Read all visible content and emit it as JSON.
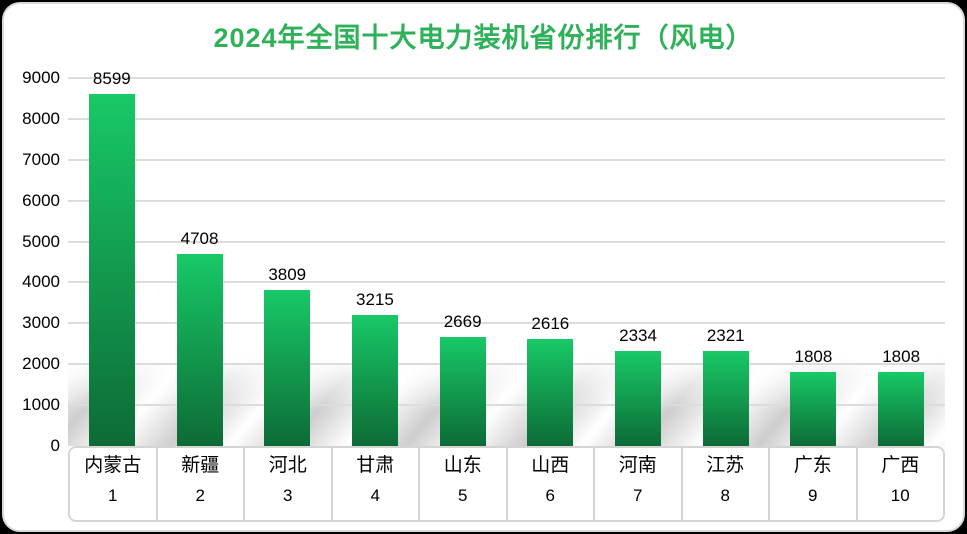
{
  "window": {
    "background": "#000000"
  },
  "card": {
    "background": "#ffffff",
    "border_color": "#d9d9d9"
  },
  "chart_data": {
    "type": "bar",
    "title": "2024年全国十大电力装机省份排行（风电）",
    "title_color": "#2eb158",
    "categories": [
      "内蒙古",
      "新疆",
      "河北",
      "甘肃",
      "山东",
      "山西",
      "河南",
      "江苏",
      "广东",
      "广西"
    ],
    "ranks": [
      "1",
      "2",
      "3",
      "4",
      "5",
      "6",
      "7",
      "8",
      "9",
      "10"
    ],
    "values": [
      8599,
      4708,
      3809,
      3215,
      2669,
      2616,
      2334,
      2321,
      1808,
      1808
    ],
    "xlabel": "",
    "ylabel": "",
    "ylim": [
      0,
      9000
    ],
    "yticks": [
      0,
      1000,
      2000,
      3000,
      4000,
      5000,
      6000,
      7000,
      8000,
      9000
    ],
    "grid": true,
    "legend": false,
    "bar_gradient_top": "#18c967",
    "bar_gradient_bottom": "#0d6b36",
    "gridline_color": "#dcdcdc",
    "tick_label_color": "#000000",
    "value_label_color": "#000000"
  }
}
